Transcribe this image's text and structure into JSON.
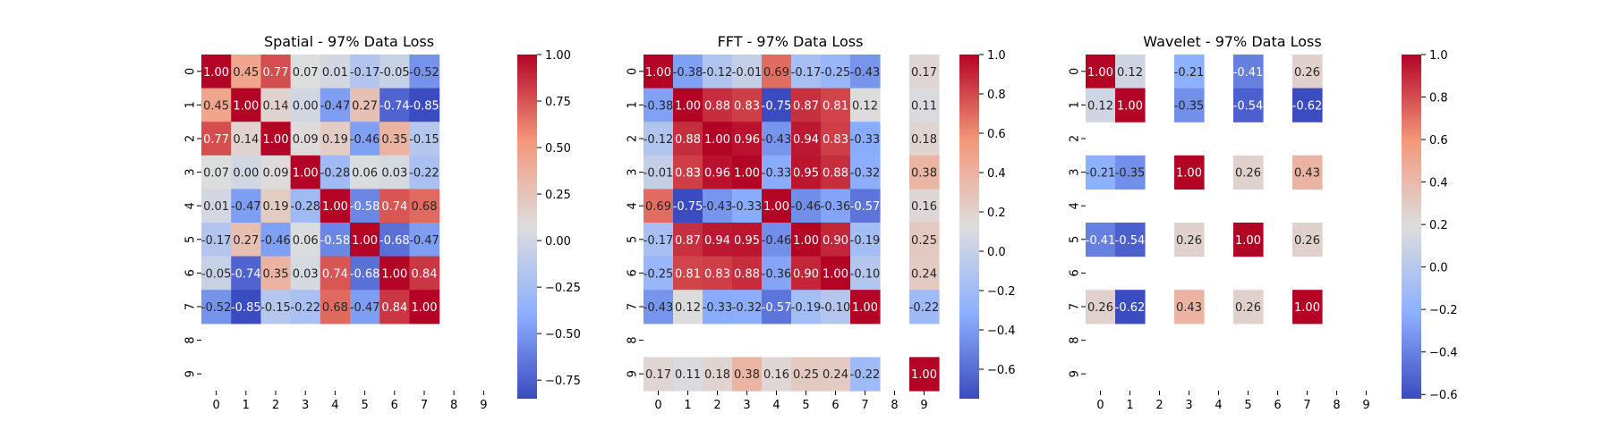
{
  "chart_data": [
    {
      "type": "heatmap",
      "title": "Spatial - 97% Data Loss",
      "x_labels": [
        "0",
        "1",
        "2",
        "3",
        "4",
        "5",
        "6",
        "7",
        "8",
        "9"
      ],
      "y_labels": [
        "0",
        "1",
        "2",
        "3",
        "4",
        "5",
        "6",
        "7",
        "8",
        "9"
      ],
      "values": [
        [
          1.0,
          0.45,
          0.77,
          0.07,
          0.01,
          -0.17,
          -0.05,
          -0.52,
          null,
          null
        ],
        [
          0.45,
          1.0,
          0.14,
          -0.0,
          -0.47,
          0.27,
          -0.74,
          -0.85,
          null,
          null
        ],
        [
          0.77,
          0.14,
          1.0,
          0.09,
          0.19,
          -0.46,
          0.35,
          -0.15,
          null,
          null
        ],
        [
          0.07,
          -0.0,
          0.09,
          1.0,
          -0.28,
          0.06,
          0.03,
          -0.22,
          null,
          null
        ],
        [
          0.01,
          -0.47,
          0.19,
          -0.28,
          1.0,
          -0.58,
          0.74,
          0.68,
          null,
          null
        ],
        [
          -0.17,
          0.27,
          -0.46,
          0.06,
          -0.58,
          1.0,
          -0.68,
          -0.47,
          null,
          null
        ],
        [
          -0.05,
          -0.74,
          0.35,
          0.03,
          0.74,
          -0.68,
          1.0,
          0.84,
          null,
          null
        ],
        [
          -0.52,
          -0.85,
          -0.15,
          -0.22,
          0.68,
          -0.47,
          0.84,
          1.0,
          null,
          null
        ],
        [
          null,
          null,
          null,
          null,
          null,
          null,
          null,
          null,
          null,
          null
        ],
        [
          null,
          null,
          null,
          null,
          null,
          null,
          null,
          null,
          null,
          null
        ]
      ],
      "value_range": [
        -0.85,
        1.0
      ],
      "colorbar_ticks": [
        "1.00",
        "0.75",
        "0.50",
        "0.25",
        "0.00",
        "−0.25",
        "−0.50",
        "−0.75"
      ],
      "colorbar_tick_values": [
        1.0,
        0.75,
        0.5,
        0.25,
        0.0,
        -0.25,
        -0.5,
        -0.75
      ],
      "colormap": "coolwarm"
    },
    {
      "type": "heatmap",
      "title": "FFT - 97% Data Loss",
      "x_labels": [
        "0",
        "1",
        "2",
        "3",
        "4",
        "5",
        "6",
        "7",
        "8",
        "9"
      ],
      "y_labels": [
        "0",
        "1",
        "2",
        "3",
        "4",
        "5",
        "6",
        "7",
        "8",
        "9"
      ],
      "values": [
        [
          1.0,
          -0.38,
          -0.12,
          -0.01,
          0.69,
          -0.17,
          -0.25,
          -0.43,
          null,
          0.17
        ],
        [
          -0.38,
          1.0,
          0.88,
          0.83,
          -0.75,
          0.87,
          0.81,
          0.12,
          null,
          0.11
        ],
        [
          -0.12,
          0.88,
          1.0,
          0.96,
          -0.43,
          0.94,
          0.83,
          -0.33,
          null,
          0.18
        ],
        [
          -0.01,
          0.83,
          0.96,
          1.0,
          -0.33,
          0.95,
          0.88,
          -0.32,
          null,
          0.38
        ],
        [
          0.69,
          -0.75,
          -0.43,
          -0.33,
          1.0,
          -0.46,
          -0.36,
          -0.57,
          null,
          0.16
        ],
        [
          -0.17,
          0.87,
          0.94,
          0.95,
          -0.46,
          1.0,
          0.9,
          -0.19,
          null,
          0.25
        ],
        [
          -0.25,
          0.81,
          0.83,
          0.88,
          -0.36,
          0.9,
          1.0,
          -0.1,
          null,
          0.24
        ],
        [
          -0.43,
          0.12,
          -0.33,
          -0.32,
          -0.57,
          -0.19,
          -0.1,
          1.0,
          null,
          -0.22
        ],
        [
          null,
          null,
          null,
          null,
          null,
          null,
          null,
          null,
          null,
          null
        ],
        [
          0.17,
          0.11,
          0.18,
          0.38,
          0.16,
          0.25,
          0.24,
          -0.22,
          null,
          1.0
        ]
      ],
      "value_range": [
        -0.75,
        1.0
      ],
      "colorbar_ticks": [
        "1.0",
        "0.8",
        "0.6",
        "0.4",
        "0.2",
        "0.0",
        "−0.2",
        "−0.4",
        "−0.6"
      ],
      "colorbar_tick_values": [
        1.0,
        0.8,
        0.6,
        0.4,
        0.2,
        0.0,
        -0.2,
        -0.4,
        -0.6
      ],
      "colormap": "coolwarm"
    },
    {
      "type": "heatmap",
      "title": "Wavelet - 97% Data Loss",
      "x_labels": [
        "0",
        "1",
        "2",
        "3",
        "4",
        "5",
        "6",
        "7",
        "8",
        "9"
      ],
      "y_labels": [
        "0",
        "1",
        "2",
        "3",
        "4",
        "5",
        "6",
        "7",
        "8",
        "9"
      ],
      "values": [
        [
          1.0,
          0.12,
          null,
          -0.21,
          null,
          -0.41,
          null,
          0.26,
          null,
          null
        ],
        [
          0.12,
          1.0,
          null,
          -0.35,
          null,
          -0.54,
          null,
          -0.62,
          null,
          null
        ],
        [
          null,
          null,
          null,
          null,
          null,
          null,
          null,
          null,
          null,
          null
        ],
        [
          -0.21,
          -0.35,
          null,
          1.0,
          null,
          0.26,
          null,
          0.43,
          null,
          null
        ],
        [
          null,
          null,
          null,
          null,
          null,
          null,
          null,
          null,
          null,
          null
        ],
        [
          -0.41,
          -0.54,
          null,
          0.26,
          null,
          1.0,
          null,
          0.26,
          null,
          null
        ],
        [
          null,
          null,
          null,
          null,
          null,
          null,
          null,
          null,
          null,
          null
        ],
        [
          0.26,
          -0.62,
          null,
          0.43,
          null,
          0.26,
          null,
          1.0,
          null,
          null
        ],
        [
          null,
          null,
          null,
          null,
          null,
          null,
          null,
          null,
          null,
          null
        ],
        [
          null,
          null,
          null,
          null,
          null,
          null,
          null,
          null,
          null,
          null
        ]
      ],
      "value_range": [
        -0.62,
        1.0
      ],
      "colorbar_ticks": [
        "1.0",
        "0.8",
        "0.6",
        "0.4",
        "0.2",
        "0.0",
        "−0.2",
        "−0.4",
        "−0.6"
      ],
      "colorbar_tick_values": [
        1.0,
        0.8,
        0.6,
        0.4,
        0.2,
        0.0,
        -0.2,
        -0.4,
        -0.6
      ],
      "colormap": "coolwarm"
    }
  ]
}
